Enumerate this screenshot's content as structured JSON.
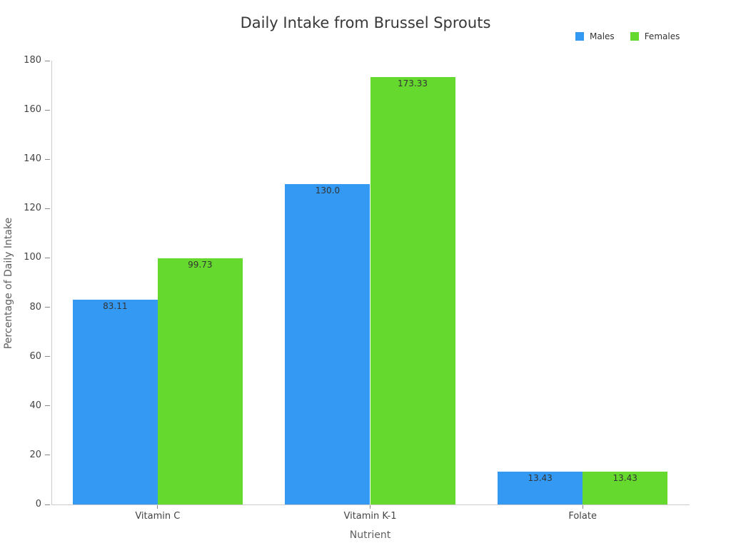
{
  "title": "Daily Intake from Brussel Sprouts",
  "legend": {
    "position": "top-right"
  },
  "xaxis": {
    "title": "Nutrient"
  },
  "yaxis": {
    "title": "Percentage of Daily Intake"
  },
  "chart_data": {
    "type": "bar",
    "title": "Daily Intake from Brussel Sprouts",
    "categories": [
      "Vitamin C",
      "Vitamin K-1",
      "Folate"
    ],
    "series": [
      {
        "name": "Males",
        "color": "#3399f3",
        "values": [
          83.11,
          130.0,
          13.43
        ],
        "bar_labels": [
          "83.11",
          "130.0",
          "13.43"
        ]
      },
      {
        "name": "Females",
        "color": "#66d92e",
        "values": [
          99.73,
          173.33,
          13.43
        ],
        "bar_labels": [
          "99.73",
          "173.33",
          "13.43"
        ]
      }
    ],
    "xlabel": "Nutrient",
    "ylabel": "Percentage of Daily Intake",
    "ylim": [
      0,
      180
    ],
    "yticks": [
      0,
      20,
      40,
      60,
      80,
      100,
      120,
      140,
      160,
      180
    ],
    "grid": false,
    "legend_position": "top-right",
    "bar_label_position": "inside-top"
  },
  "colors": {
    "axis_line": "#cccccc",
    "tick_mark": "#888888",
    "tick_text": "#444444",
    "axis_title_text": "#5f5f5f",
    "title_text": "#383838",
    "bar_label_text": "#333333",
    "background": "#ffffff"
  }
}
